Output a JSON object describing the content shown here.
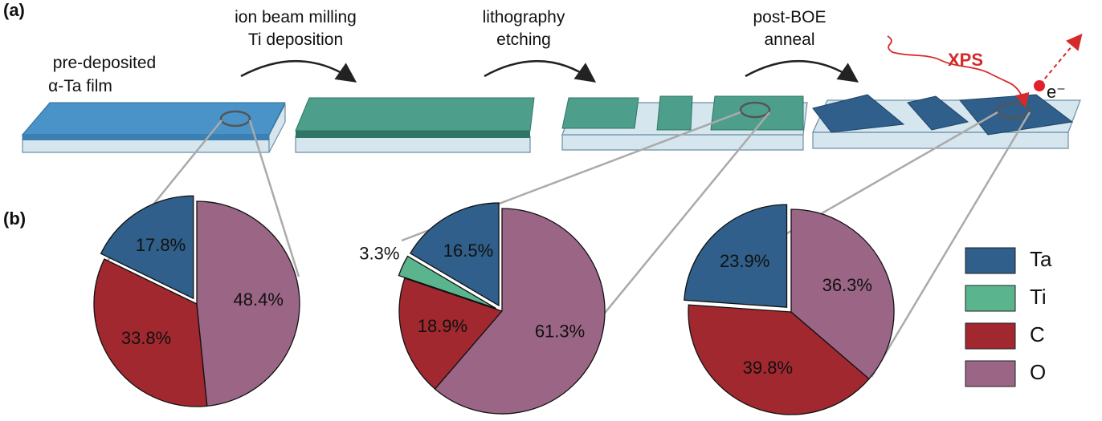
{
  "diagram": {
    "panel_a": "(a)",
    "panel_b": "(b)",
    "steps": [
      [
        "pre-deposited",
        "α-Ta film"
      ],
      [
        "ion beam milling",
        "Ti deposition"
      ],
      [
        "lithography",
        "etching"
      ],
      [
        "post-BOE",
        "anneal"
      ]
    ],
    "xps": "XPS",
    "electron": "e⁻"
  },
  "chart_data": [
    {
      "type": "pie",
      "categories": [
        "Ta",
        "C",
        "O"
      ],
      "values": [
        17.8,
        33.8,
        48.4
      ],
      "value_labels": [
        "17.8%",
        "33.8%",
        "48.4%"
      ],
      "colors": [
        "#2f5f8a",
        "#a0282e",
        "#9b6585"
      ],
      "exploded": [
        true,
        false,
        false
      ]
    },
    {
      "type": "pie",
      "categories": [
        "Ta",
        "Ti",
        "C",
        "O"
      ],
      "values": [
        16.5,
        3.3,
        18.9,
        61.3
      ],
      "value_labels": [
        "16.5%",
        "3.3%",
        "18.9%",
        "61.3%"
      ],
      "colors": [
        "#2f5f8a",
        "#5ab58e",
        "#a0282e",
        "#9b6585"
      ],
      "exploded": [
        true,
        true,
        false,
        false
      ],
      "legend": "right"
    },
    {
      "type": "pie",
      "categories": [
        "Ta",
        "C",
        "O"
      ],
      "values": [
        23.9,
        39.8,
        36.3
      ],
      "value_labels": [
        "23.9%",
        "39.8%",
        "36.3%"
      ],
      "colors": [
        "#2f5f8a",
        "#a0282e",
        "#9b6585"
      ],
      "exploded": [
        true,
        false,
        false
      ]
    }
  ]
}
